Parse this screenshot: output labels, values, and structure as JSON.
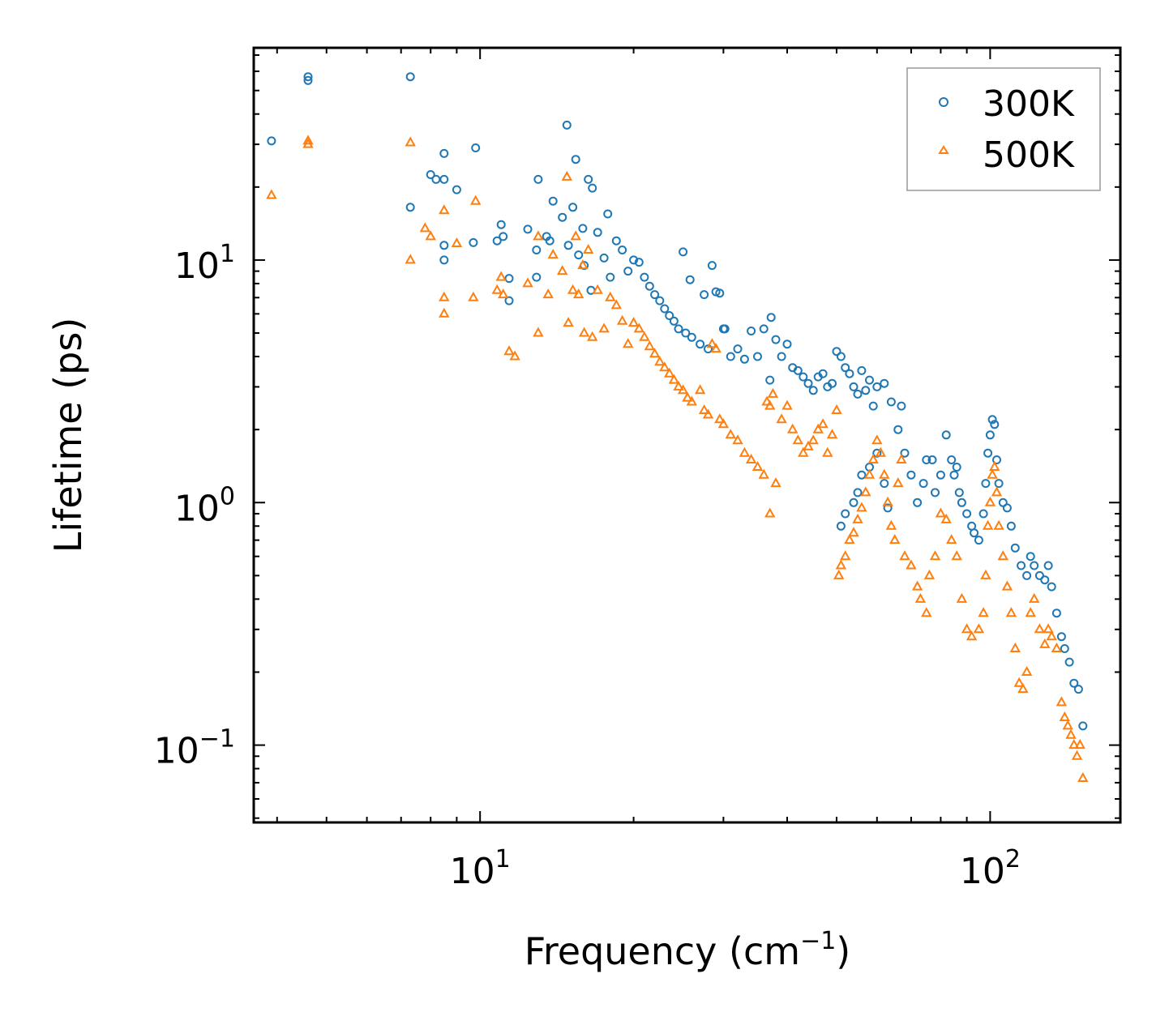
{
  "chart_data": {
    "type": "scatter",
    "xscale": "log",
    "yscale": "log",
    "xlabel": "Frequency (cm",
    "xlabel_sup": "−1",
    "xlabel_end": ")",
    "ylabel": "Lifetime (ps)",
    "xlim": [
      3.6,
      180
    ],
    "ylim": [
      0.048,
      75
    ],
    "x_ticks": [
      {
        "value": 10,
        "base": "10",
        "exp": "1"
      },
      {
        "value": 100,
        "base": "10",
        "exp": "2"
      }
    ],
    "y_ticks": [
      {
        "value": 0.1,
        "base": "10",
        "exp": "−1"
      },
      {
        "value": 1,
        "base": "10",
        "exp": "0"
      },
      {
        "value": 10,
        "base": "10",
        "exp": "1"
      }
    ],
    "legend_position": "top-right",
    "series": [
      {
        "name": "300K",
        "marker": "circle",
        "color": "#1f77b4",
        "points": [
          [
            3.9,
            31
          ],
          [
            4.6,
            57
          ],
          [
            4.6,
            55
          ],
          [
            7.3,
            57
          ],
          [
            7.3,
            16.5
          ],
          [
            8.0,
            22.5
          ],
          [
            8.2,
            21.5
          ],
          [
            8.5,
            27.5
          ],
          [
            8.5,
            21.5
          ],
          [
            8.5,
            11.5
          ],
          [
            8.5,
            10
          ],
          [
            9.0,
            19.5
          ],
          [
            9.8,
            29
          ],
          [
            9.7,
            11.8
          ],
          [
            10.8,
            12
          ],
          [
            11.0,
            14
          ],
          [
            11.1,
            12.5
          ],
          [
            11.4,
            8.4
          ],
          [
            11.4,
            6.8
          ],
          [
            12.4,
            13.4
          ],
          [
            13.0,
            21.5
          ],
          [
            12.9,
            8.5
          ],
          [
            12.9,
            11
          ],
          [
            13.5,
            12.5
          ],
          [
            13.7,
            12
          ],
          [
            13.9,
            17.5
          ],
          [
            14.5,
            15
          ],
          [
            14.8,
            36
          ],
          [
            14.9,
            11.5
          ],
          [
            15.2,
            16.5
          ],
          [
            15.4,
            26
          ],
          [
            15.6,
            10.5
          ],
          [
            15.9,
            13.5
          ],
          [
            16.0,
            9.5
          ],
          [
            16.3,
            21.5
          ],
          [
            16.6,
            19.8
          ],
          [
            16.5,
            7.5
          ],
          [
            17.0,
            13
          ],
          [
            17.5,
            10.2
          ],
          [
            17.8,
            15.5
          ],
          [
            18.0,
            8.5
          ],
          [
            18.5,
            12
          ],
          [
            19.0,
            11
          ],
          [
            19.5,
            9
          ],
          [
            20.0,
            10
          ],
          [
            20.5,
            9.8
          ],
          [
            21.0,
            8.5
          ],
          [
            21.5,
            7.8
          ],
          [
            22.0,
            7.2
          ],
          [
            22.5,
            6.8
          ],
          [
            23.0,
            6.3
          ],
          [
            23.5,
            5.9
          ],
          [
            24.0,
            5.6
          ],
          [
            24.5,
            5.2
          ],
          [
            25.0,
            10.8
          ],
          [
            25.3,
            5.0
          ],
          [
            25.8,
            8.3
          ],
          [
            26.0,
            4.8
          ],
          [
            27.0,
            4.5
          ],
          [
            27.5,
            7.2
          ],
          [
            28.0,
            4.3
          ],
          [
            28.5,
            9.5
          ],
          [
            29.0,
            7.4
          ],
          [
            29.5,
            7.3
          ],
          [
            30.0,
            5.2
          ],
          [
            30.2,
            5.2
          ],
          [
            31.0,
            4.0
          ],
          [
            32.0,
            4.3
          ],
          [
            33.0,
            3.9
          ],
          [
            34.0,
            5.1
          ],
          [
            35.0,
            4.0
          ],
          [
            36.0,
            5.2
          ],
          [
            37.0,
            3.2
          ],
          [
            37.2,
            5.8
          ],
          [
            38.0,
            4.7
          ],
          [
            39.0,
            4.0
          ],
          [
            40.0,
            4.5
          ],
          [
            41.0,
            3.6
          ],
          [
            42.0,
            3.5
          ],
          [
            43.0,
            3.3
          ],
          [
            44.0,
            3.1
          ],
          [
            45.0,
            2.9
          ],
          [
            46.0,
            3.3
          ],
          [
            47.0,
            3.4
          ],
          [
            48.0,
            3.0
          ],
          [
            49.0,
            3.1
          ],
          [
            50.0,
            4.2
          ],
          [
            51.0,
            4.0
          ],
          [
            52.0,
            3.6
          ],
          [
            53.0,
            3.4
          ],
          [
            54.0,
            3.0
          ],
          [
            55.0,
            2.8
          ],
          [
            56.0,
            3.5
          ],
          [
            57.0,
            2.9
          ],
          [
            58.0,
            3.2
          ],
          [
            59.0,
            2.5
          ],
          [
            60.0,
            3.0
          ],
          [
            62.0,
            3.1
          ],
          [
            64.0,
            2.6
          ],
          [
            66.0,
            2.0
          ],
          [
            67.0,
            2.5
          ],
          [
            68.0,
            1.6
          ],
          [
            70.0,
            1.3
          ],
          [
            72.0,
            1.0
          ],
          [
            74.0,
            1.2
          ],
          [
            75.0,
            1.5
          ],
          [
            77.0,
            1.5
          ],
          [
            78.0,
            1.1
          ],
          [
            80.0,
            1.3
          ],
          [
            82.0,
            1.9
          ],
          [
            84.0,
            1.5
          ],
          [
            86.0,
            1.4
          ],
          [
            88.0,
            1.0
          ],
          [
            90.0,
            0.9
          ],
          [
            92.0,
            0.8
          ],
          [
            95.0,
            0.7
          ],
          [
            98.0,
            1.2
          ],
          [
            99.0,
            1.6
          ],
          [
            100.0,
            1.9
          ],
          [
            101.0,
            2.2
          ],
          [
            102.0,
            2.1
          ],
          [
            104.0,
            1.2
          ],
          [
            106.0,
            1.0
          ],
          [
            108.0,
            0.95
          ],
          [
            110.0,
            0.8
          ],
          [
            112.0,
            0.65
          ],
          [
            115.0,
            0.55
          ],
          [
            118.0,
            0.5
          ],
          [
            120.0,
            0.6
          ],
          [
            122.0,
            0.55
          ],
          [
            125.0,
            0.5
          ],
          [
            128.0,
            0.48
          ],
          [
            130.0,
            0.55
          ],
          [
            132.0,
            0.45
          ],
          [
            135.0,
            0.35
          ],
          [
            138.0,
            0.28
          ],
          [
            140.0,
            0.25
          ],
          [
            143.0,
            0.22
          ],
          [
            146.0,
            0.18
          ],
          [
            149.0,
            0.17
          ],
          [
            152.0,
            0.12
          ],
          [
            51.0,
            0.8
          ],
          [
            52.0,
            0.9
          ],
          [
            55.0,
            1.1
          ],
          [
            58.0,
            1.4
          ],
          [
            60.0,
            1.6
          ],
          [
            62.0,
            1.2
          ],
          [
            63.0,
            0.95
          ],
          [
            56.0,
            1.3
          ],
          [
            54.0,
            1.0
          ],
          [
            85.0,
            1.3
          ],
          [
            87.0,
            1.1
          ],
          [
            93.0,
            0.75
          ],
          [
            97.0,
            0.9
          ],
          [
            103.0,
            1.5
          ]
        ]
      },
      {
        "name": "500K",
        "marker": "triangle",
        "color": "#ff7f0e",
        "points": [
          [
            3.9,
            18.5
          ],
          [
            4.6,
            31
          ],
          [
            4.6,
            30
          ],
          [
            7.3,
            30.5
          ],
          [
            7.3,
            10
          ],
          [
            7.8,
            13.5
          ],
          [
            8.0,
            12.5
          ],
          [
            8.5,
            16
          ],
          [
            8.5,
            7
          ],
          [
            8.5,
            6
          ],
          [
            9.0,
            11.7
          ],
          [
            9.8,
            17.5
          ],
          [
            9.7,
            7
          ],
          [
            10.8,
            7.5
          ],
          [
            11.0,
            8.5
          ],
          [
            11.1,
            7.2
          ],
          [
            11.4,
            4.2
          ],
          [
            11.7,
            4.0
          ],
          [
            12.4,
            8
          ],
          [
            13.0,
            12.5
          ],
          [
            13.0,
            5
          ],
          [
            13.6,
            7.2
          ],
          [
            13.9,
            10.5
          ],
          [
            14.5,
            9
          ],
          [
            14.8,
            22
          ],
          [
            14.9,
            5.5
          ],
          [
            15.2,
            7.5
          ],
          [
            15.4,
            12.5
          ],
          [
            15.6,
            7.2
          ],
          [
            15.9,
            9.5
          ],
          [
            16.0,
            5.0
          ],
          [
            16.3,
            11
          ],
          [
            16.6,
            4.8
          ],
          [
            17.0,
            7.5
          ],
          [
            17.5,
            5.2
          ],
          [
            18.0,
            7.0
          ],
          [
            18.5,
            6.5
          ],
          [
            19.0,
            5.6
          ],
          [
            19.5,
            4.5
          ],
          [
            20.0,
            5.5
          ],
          [
            20.5,
            5.2
          ],
          [
            21.0,
            4.8
          ],
          [
            21.5,
            4.4
          ],
          [
            22.0,
            4.1
          ],
          [
            22.5,
            3.8
          ],
          [
            23.0,
            3.6
          ],
          [
            23.5,
            3.4
          ],
          [
            24.0,
            3.2
          ],
          [
            24.5,
            3.0
          ],
          [
            25.0,
            2.9
          ],
          [
            25.5,
            2.7
          ],
          [
            26.0,
            2.6
          ],
          [
            27.0,
            2.9
          ],
          [
            27.5,
            2.4
          ],
          [
            28.0,
            2.3
          ],
          [
            28.5,
            4.5
          ],
          [
            29.0,
            4.3
          ],
          [
            29.5,
            2.2
          ],
          [
            30.0,
            2.1
          ],
          [
            31.0,
            1.9
          ],
          [
            32.0,
            1.8
          ],
          [
            33.0,
            1.6
          ],
          [
            34.0,
            1.5
          ],
          [
            35.0,
            1.4
          ],
          [
            36.0,
            1.3
          ],
          [
            37.0,
            0.9
          ],
          [
            37.5,
            2.8
          ],
          [
            38.0,
            1.2
          ],
          [
            39.0,
            2.2
          ],
          [
            40.0,
            2.5
          ],
          [
            41.0,
            2.0
          ],
          [
            42.0,
            1.8
          ],
          [
            43.0,
            1.6
          ],
          [
            44.0,
            1.7
          ],
          [
            45.0,
            1.8
          ],
          [
            46.0,
            2.0
          ],
          [
            47.0,
            2.1
          ],
          [
            48.0,
            1.6
          ],
          [
            49.0,
            1.9
          ],
          [
            50.0,
            2.4
          ],
          [
            50.5,
            0.5
          ],
          [
            51.0,
            0.55
          ],
          [
            52.0,
            0.6
          ],
          [
            53.0,
            0.7
          ],
          [
            54.0,
            0.75
          ],
          [
            55.0,
            0.85
          ],
          [
            56.0,
            0.95
          ],
          [
            57.0,
            1.1
          ],
          [
            58.0,
            1.3
          ],
          [
            59.0,
            1.5
          ],
          [
            60.0,
            1.8
          ],
          [
            61.0,
            1.6
          ],
          [
            62.0,
            1.3
          ],
          [
            63.0,
            1.0
          ],
          [
            64.0,
            0.8
          ],
          [
            65.0,
            0.7
          ],
          [
            66.0,
            1.2
          ],
          [
            67.0,
            1.5
          ],
          [
            68.0,
            0.6
          ],
          [
            70.0,
            0.55
          ],
          [
            72.0,
            0.45
          ],
          [
            73.0,
            0.4
          ],
          [
            75.0,
            0.35
          ],
          [
            76.0,
            0.5
          ],
          [
            78.0,
            0.6
          ],
          [
            80.0,
            0.9
          ],
          [
            82.0,
            0.85
          ],
          [
            84.0,
            0.7
          ],
          [
            86.0,
            0.6
          ],
          [
            88.0,
            0.4
          ],
          [
            90.0,
            0.3
          ],
          [
            92.0,
            0.28
          ],
          [
            95.0,
            0.3
          ],
          [
            97.0,
            0.35
          ],
          [
            98.0,
            0.5
          ],
          [
            99.0,
            0.8
          ],
          [
            100.0,
            1.0
          ],
          [
            101.0,
            1.3
          ],
          [
            102.0,
            1.4
          ],
          [
            103.0,
            1.1
          ],
          [
            104.0,
            0.8
          ],
          [
            106.0,
            0.6
          ],
          [
            108.0,
            0.45
          ],
          [
            110.0,
            0.35
          ],
          [
            112.0,
            0.25
          ],
          [
            114.0,
            0.18
          ],
          [
            116.0,
            0.17
          ],
          [
            118.0,
            0.2
          ],
          [
            120.0,
            0.35
          ],
          [
            122.0,
            0.4
          ],
          [
            125.0,
            0.3
          ],
          [
            128.0,
            0.26
          ],
          [
            130.0,
            0.3
          ],
          [
            132.0,
            0.28
          ],
          [
            135.0,
            0.25
          ],
          [
            138.0,
            0.15
          ],
          [
            140.0,
            0.13
          ],
          [
            142.0,
            0.12
          ],
          [
            144.0,
            0.11
          ],
          [
            146.0,
            0.1
          ],
          [
            148.0,
            0.09
          ],
          [
            150.0,
            0.1
          ],
          [
            152.0,
            0.073
          ],
          [
            36.5,
            2.6
          ],
          [
            37.0,
            2.5
          ]
        ]
      }
    ]
  }
}
